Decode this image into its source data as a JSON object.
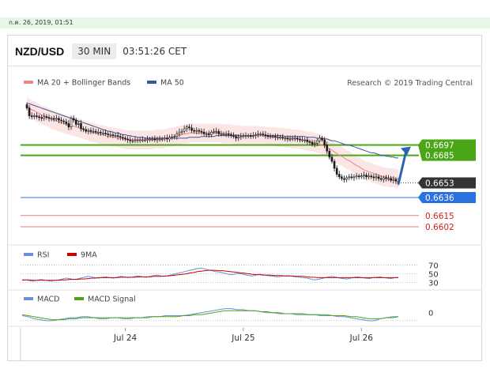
{
  "page": {
    "date_text": "ก.ค. 26, 2019, 01:51"
  },
  "header": {
    "pair": "NZD/USD",
    "timeframe": "30 MIN",
    "clock": "03:51:26 CET"
  },
  "legend": {
    "ma20": "MA 20 + Bollinger Bands",
    "ma50": "MA 50",
    "credit": "Research © 2019 Trading Central",
    "rsi": "RSI",
    "rsi_ma": "9MA",
    "macd": "MACD",
    "macd_signal": "MACD Signal"
  },
  "colors": {
    "candle": "#1a1a1a",
    "ma20": "#e88888",
    "ma50": "#3c5a99",
    "bollinger_fill": "#fbdcdc",
    "resistance": "#4aa616",
    "current": "#333333",
    "pivot": "#2a72e0",
    "support": "#e08080",
    "rsi": "#6b8fd8",
    "rsi_ma": "#cc0000",
    "macd": "#6b8fd8",
    "macd_signal": "#4aa616",
    "arrow": "#2b64b0"
  },
  "chart_data": [
    {
      "type": "candlestick",
      "pane": "price",
      "ylim": [
        0.659,
        0.676
      ],
      "x_ticks": [
        {
          "label": "Jul 24",
          "bar": 40
        },
        {
          "label": "Jul 25",
          "bar": 88
        },
        {
          "label": "Jul 26",
          "bar": 136
        }
      ],
      "close": [
        0.674,
        0.6731,
        0.673,
        0.6731,
        0.673,
        0.6729,
        0.6728,
        0.673,
        0.6729,
        0.6728,
        0.6728,
        0.6727,
        0.6728,
        0.6726,
        0.6725,
        0.6724,
        0.6722,
        0.6718,
        0.6728,
        0.6726,
        0.6721,
        0.6722,
        0.6716,
        0.6715,
        0.6713,
        0.6714,
        0.6713,
        0.6713,
        0.6712,
        0.6712,
        0.6711,
        0.6711,
        0.671,
        0.6709,
        0.6709,
        0.6708,
        0.6708,
        0.6707,
        0.6706,
        0.6705,
        0.6704,
        0.6703,
        0.6702,
        0.6702,
        0.6703,
        0.6703,
        0.6703,
        0.6703,
        0.6703,
        0.6704,
        0.6704,
        0.6704,
        0.6703,
        0.6704,
        0.6704,
        0.6704,
        0.6705,
        0.6704,
        0.6706,
        0.6706,
        0.6707,
        0.671,
        0.6712,
        0.6713,
        0.6716,
        0.6718,
        0.6717,
        0.6714,
        0.6713,
        0.6714,
        0.6713,
        0.6712,
        0.671,
        0.671,
        0.6709,
        0.6712,
        0.6713,
        0.6713,
        0.671,
        0.671,
        0.671,
        0.671,
        0.6709,
        0.6708,
        0.6707,
        0.6705,
        0.6706,
        0.6707,
        0.6708,
        0.6708,
        0.6708,
        0.6707,
        0.6708,
        0.6709,
        0.671,
        0.671,
        0.6709,
        0.6708,
        0.6707,
        0.6707,
        0.6707,
        0.6706,
        0.6706,
        0.6706,
        0.6705,
        0.6705,
        0.6704,
        0.6704,
        0.6705,
        0.6705,
        0.6704,
        0.6703,
        0.6703,
        0.6703,
        0.6701,
        0.67,
        0.6698,
        0.6699,
        0.6702,
        0.6705,
        0.6703,
        0.6697,
        0.669,
        0.6683,
        0.6678,
        0.667,
        0.6663,
        0.666,
        0.6658,
        0.6657,
        0.6659,
        0.666,
        0.6659,
        0.666,
        0.6661,
        0.666,
        0.6661,
        0.6662,
        0.666,
        0.6661,
        0.666,
        0.6659,
        0.666,
        0.6658,
        0.6657,
        0.6659,
        0.6658,
        0.6658,
        0.6656,
        0.6657,
        0.6655,
        0.6653
      ],
      "ma20": [
        0.6742,
        0.674,
        0.6738,
        0.6737,
        0.6735,
        0.6734,
        0.6732,
        0.6731,
        0.673,
        0.6729,
        0.6727,
        0.6726,
        0.6725,
        0.6724,
        0.6723,
        0.6722,
        0.6721,
        0.672,
        0.6719,
        0.6719,
        0.6718,
        0.6717,
        0.6716,
        0.6715,
        0.6714,
        0.6713,
        0.6712,
        0.6711,
        0.6711,
        0.671,
        0.6709,
        0.6709,
        0.6708,
        0.6707,
        0.6707,
        0.6706,
        0.6706,
        0.6705,
        0.6705,
        0.6704,
        0.6704,
        0.6703,
        0.6703,
        0.6703,
        0.6703,
        0.6703,
        0.6703,
        0.6703,
        0.6703,
        0.6703,
        0.6703,
        0.6703,
        0.6704,
        0.6704,
        0.6704,
        0.6704,
        0.6705,
        0.6705,
        0.6706,
        0.6706,
        0.6707,
        0.6708,
        0.6708,
        0.6709,
        0.671,
        0.671,
        0.6711,
        0.6711,
        0.6711,
        0.6711,
        0.6711,
        0.6711,
        0.6711,
        0.6711,
        0.6711,
        0.6711,
        0.6711,
        0.6711,
        0.6711,
        0.6711,
        0.671,
        0.671,
        0.671,
        0.671,
        0.6709,
        0.6709,
        0.6709,
        0.6708,
        0.6708,
        0.6708,
        0.6708,
        0.6708,
        0.6708,
        0.6708,
        0.6708,
        0.6708,
        0.6708,
        0.6707,
        0.6707,
        0.6707,
        0.6707,
        0.6707,
        0.6706,
        0.6706,
        0.6706,
        0.6705,
        0.6705,
        0.6705,
        0.6704,
        0.6704,
        0.6704,
        0.6703,
        0.6703,
        0.6702,
        0.6702,
        0.6701,
        0.6701,
        0.67,
        0.6699,
        0.6698,
        0.6697,
        0.6696,
        0.6695,
        0.6693,
        0.6691,
        0.6689,
        0.6687,
        0.6685,
        0.6684,
        0.6682,
        0.668,
        0.6679,
        0.6677,
        0.6675,
        0.6673,
        0.6672,
        0.667,
        0.6668,
        0.6667,
        0.6666,
        0.6665,
        0.6664,
        0.6663,
        0.6662,
        0.6661,
        0.666,
        0.666,
        0.6659,
        0.6659,
        0.6659,
        0.6658,
        0.6658
      ],
      "ma50": [
        0.6746,
        0.6745,
        0.6744,
        0.6743,
        0.6742,
        0.6741,
        0.674,
        0.6739,
        0.6738,
        0.6737,
        0.6736,
        0.6735,
        0.6734,
        0.6733,
        0.6732,
        0.6731,
        0.673,
        0.6729,
        0.6728,
        0.6727,
        0.6726,
        0.6725,
        0.6724,
        0.6723,
        0.6722,
        0.6721,
        0.672,
        0.6719,
        0.6718,
        0.6717,
        0.6716,
        0.6715,
        0.6714,
        0.6713,
        0.6713,
        0.6712,
        0.6711,
        0.6711,
        0.671,
        0.6709,
        0.6709,
        0.6708,
        0.6708,
        0.6707,
        0.6707,
        0.6706,
        0.6706,
        0.6706,
        0.6705,
        0.6705,
        0.6705,
        0.6705,
        0.6705,
        0.6705,
        0.6705,
        0.6705,
        0.6705,
        0.6705,
        0.6705,
        0.6705,
        0.6705,
        0.6705,
        0.6705,
        0.6705,
        0.6705,
        0.6705,
        0.6706,
        0.6706,
        0.6706,
        0.6706,
        0.6706,
        0.6707,
        0.6707,
        0.6707,
        0.6707,
        0.6707,
        0.6707,
        0.6708,
        0.6708,
        0.6708,
        0.6708,
        0.6708,
        0.6708,
        0.6708,
        0.6708,
        0.6708,
        0.6708,
        0.6708,
        0.6708,
        0.6708,
        0.6708,
        0.6708,
        0.6708,
        0.6708,
        0.6708,
        0.6708,
        0.6708,
        0.6708,
        0.6708,
        0.6708,
        0.6708,
        0.6708,
        0.6708,
        0.6708,
        0.6708,
        0.6707,
        0.6707,
        0.6707,
        0.6707,
        0.6707,
        0.6707,
        0.6707,
        0.6707,
        0.6707,
        0.6706,
        0.6706,
        0.6706,
        0.6706,
        0.6705,
        0.6705,
        0.6705,
        0.6704,
        0.6704,
        0.6703,
        0.6702,
        0.6702,
        0.6701,
        0.67,
        0.6699,
        0.6698,
        0.6697,
        0.6697,
        0.6696,
        0.6695,
        0.6694,
        0.6693,
        0.6692,
        0.6691,
        0.669,
        0.6689,
        0.6688,
        0.6688,
        0.6687,
        0.6686,
        0.6685,
        0.6685,
        0.6684,
        0.6684,
        0.6683,
        0.6683,
        0.6682,
        0.6682
      ],
      "bollinger_width": 0.0011,
      "levels": [
        {
          "value": "0.6697",
          "kind": "resistance"
        },
        {
          "value": "0.6685",
          "kind": "resistance"
        },
        {
          "value": "0.6653",
          "kind": "current"
        },
        {
          "value": "0.6636",
          "kind": "pivot"
        },
        {
          "value": "0.6615",
          "kind": "support"
        },
        {
          "value": "0.6602",
          "kind": "support"
        }
      ],
      "projection": {
        "from": 0.6655,
        "to": 0.6697
      },
      "legend": [
        "MA 20 + Bollinger Bands",
        "MA 50"
      ]
    },
    {
      "type": "line",
      "pane": "rsi",
      "ylim": [
        20,
        80
      ],
      "y_ticks": [
        "70",
        "50",
        "30"
      ],
      "series": [
        {
          "name": "RSI",
          "values": [
            35,
            36,
            34,
            33,
            35,
            37,
            36,
            34,
            33,
            35,
            36,
            38,
            40,
            39,
            37,
            38,
            40,
            42,
            44,
            43,
            41,
            40,
            42,
            43,
            41,
            40,
            42,
            44,
            43,
            41,
            42,
            44,
            45,
            43,
            42,
            44,
            46,
            47,
            45,
            44,
            46,
            48,
            50,
            52,
            54,
            56,
            58,
            60,
            62,
            63,
            61,
            59,
            57,
            55,
            54,
            52,
            50,
            48,
            49,
            51,
            50,
            48,
            46,
            45,
            47,
            49,
            48,
            46,
            45,
            44,
            43,
            44,
            45,
            46,
            44,
            43,
            42,
            41,
            40,
            38,
            36,
            37,
            39,
            41,
            43,
            44,
            42,
            40,
            39,
            38,
            40,
            42,
            43,
            41,
            40,
            39,
            41,
            42,
            43,
            41,
            40,
            39,
            41,
            42
          ]
        },
        {
          "name": "9MA",
          "values": [
            36,
            36,
            36,
            35,
            35,
            35,
            35,
            35,
            35,
            35,
            35,
            36,
            36,
            37,
            37,
            37,
            38,
            38,
            39,
            40,
            40,
            41,
            41,
            41,
            41,
            41,
            41,
            42,
            42,
            42,
            42,
            42,
            43,
            43,
            43,
            43,
            44,
            44,
            44,
            45,
            45,
            46,
            47,
            48,
            49,
            50,
            52,
            53,
            55,
            56,
            57,
            58,
            58,
            58,
            57,
            57,
            56,
            55,
            54,
            53,
            52,
            51,
            50,
            49,
            48,
            48,
            47,
            47,
            47,
            46,
            46,
            46,
            45,
            45,
            45,
            44,
            44,
            44,
            43,
            42,
            42,
            41,
            41,
            41,
            41,
            41,
            41,
            41,
            41,
            41,
            41,
            41,
            41,
            41,
            41,
            41,
            41,
            41,
            41,
            41,
            41,
            41,
            41,
            41
          ]
        }
      ],
      "legend": [
        "RSI",
        "9MA"
      ]
    },
    {
      "type": "line",
      "pane": "macd",
      "ylim": [
        -0.0012,
        0.001
      ],
      "y_ticks": [
        "0"
      ],
      "series": [
        {
          "name": "MACD",
          "values": [
            -0.0003,
            -0.0004,
            -0.0006,
            -0.0007,
            -0.0008,
            -0.0008,
            -0.0007,
            -0.0006,
            -0.0005,
            -0.0005,
            -0.0004,
            -0.0004,
            -0.0005,
            -0.0006,
            -0.0006,
            -0.0005,
            -0.0005,
            -0.0006,
            -0.0006,
            -0.0005,
            -0.0005,
            -0.0004,
            -0.0004,
            -0.0004,
            -0.0003,
            -0.0003,
            -0.0003,
            -0.0003,
            -0.0002,
            -0.0001,
            0.0,
            0.0001,
            0.0002,
            0.0003,
            0.0004,
            0.0004,
            0.0003,
            0.0003,
            0.0002,
            0.0002,
            0.0001,
            0.0,
            0.0,
            -0.0001,
            -0.0001,
            -0.0001,
            -0.0002,
            -0.0002,
            -0.0002,
            -0.0002,
            -0.0003,
            -0.0003,
            -0.0003,
            -0.0004,
            -0.0004,
            -0.0005,
            -0.0006,
            -0.0007,
            -0.0008,
            -0.0008,
            -0.0006,
            -0.0005,
            -0.0004,
            -0.0004
          ]
        },
        {
          "name": "MACD Signal",
          "values": [
            -0.0002,
            -0.0003,
            -0.0004,
            -0.0005,
            -0.0006,
            -0.0007,
            -0.0007,
            -0.0007,
            -0.0006,
            -0.0006,
            -0.0005,
            -0.0005,
            -0.0005,
            -0.0005,
            -0.0005,
            -0.0005,
            -0.0005,
            -0.0005,
            -0.0005,
            -0.0005,
            -0.0005,
            -0.0005,
            -0.0004,
            -0.0004,
            -0.0004,
            -0.0004,
            -0.0004,
            -0.0003,
            -0.0003,
            -0.0002,
            -0.0002,
            -0.0001,
            0.0,
            0.0001,
            0.0002,
            0.0002,
            0.0002,
            0.0002,
            0.0002,
            0.0002,
            0.0001,
            0.0001,
            0.0,
            0.0,
            -0.0001,
            -0.0001,
            -0.0001,
            -0.0001,
            -0.0002,
            -0.0002,
            -0.0002,
            -0.0002,
            -0.0003,
            -0.0003,
            -0.0003,
            -0.0004,
            -0.0004,
            -0.0005,
            -0.0006,
            -0.0006,
            -0.0006,
            -0.0005,
            -0.0005,
            -0.0004
          ]
        }
      ],
      "legend": [
        "MACD",
        "MACD Signal"
      ]
    }
  ]
}
